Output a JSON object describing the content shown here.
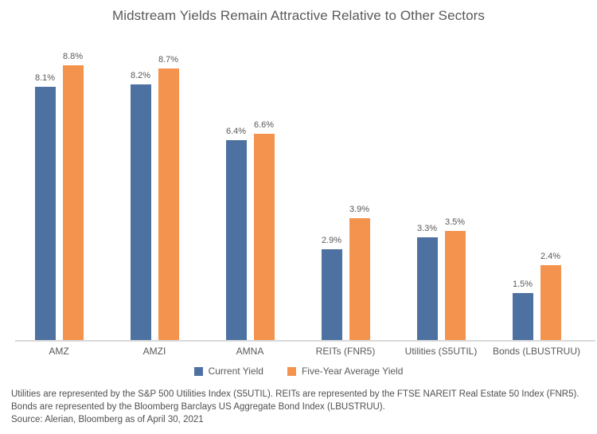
{
  "title": "Midstream Yields Remain Attractive Relative to Other Sectors",
  "chart_data": {
    "type": "bar",
    "categories": [
      "AMZ",
      "AMZI",
      "AMNA",
      "REITs (FNR5)",
      "Utilities (S5UTIL)",
      "Bonds (LBUSTRUU)"
    ],
    "series": [
      {
        "name": "Current Yield",
        "color": "#4d71a0",
        "values": [
          8.1,
          8.2,
          6.4,
          2.9,
          3.3,
          1.5
        ]
      },
      {
        "name": "Five-Year Average Yield",
        "color": "#f4934e",
        "values": [
          8.8,
          8.7,
          6.6,
          3.9,
          3.5,
          2.4
        ]
      }
    ],
    "value_suffix": "%",
    "data_labels": true,
    "grid": false,
    "ylim": [
      0,
      9.31
    ],
    "legend_position": "bottom",
    "xlabel": "",
    "ylabel": ""
  },
  "colors": {
    "axis_line": "#d9d9d9",
    "title_text": "#595959",
    "label_text": "#595959",
    "footnote_text": "#4f4f4f"
  },
  "footnotes": [
    "Utilities are represented by the S&P 500 Utilities Index (S5UTIL). REITs are represented by the FTSE NAREIT Real Estate 50 Index (FNR5).",
    "Bonds are represented by the Bloomberg Barclays US Aggregate Bond Index (LBUSTRUU).",
    "Source: Alerian, Bloomberg as of April 30, 2021"
  ]
}
